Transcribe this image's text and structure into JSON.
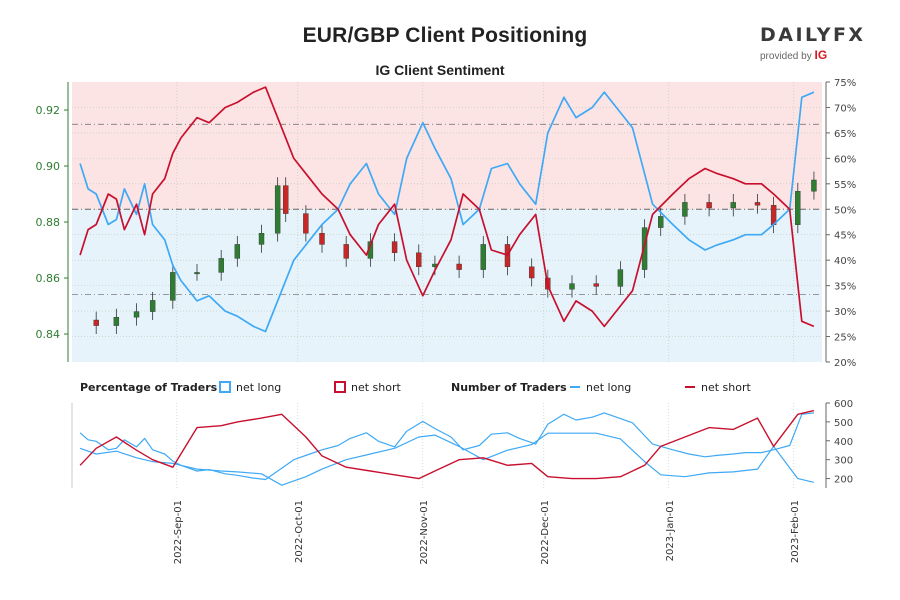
{
  "title": "EUR/GBP Client Positioning",
  "subtitle": "IG Client Sentiment",
  "logo": {
    "word_a": "DAILY",
    "word_b": "FX",
    "provided_by": "provided by",
    "ig": "IG"
  },
  "legend": {
    "pct_heading": "Percentage of Traders",
    "pct_long": "net long",
    "pct_short": "net short",
    "num_heading": "Number of Traders",
    "num_long": "net long",
    "num_short": "net short"
  },
  "colors": {
    "long": "#3fa9f5",
    "short": "#c8102e",
    "long_fill": "#e6f3fb",
    "short_fill": "#fce4e4",
    "candle_up": "#2e7d32",
    "candle_down": "#c62828",
    "price_axis": "#2e7d32"
  },
  "chart_data": [
    {
      "type": "candlestick-with-area",
      "title": "EUR/GBP Client Positioning",
      "subtitle": "IG Client Sentiment",
      "x_axis_type": "date",
      "x_ticks": [
        "2022-Sep-01",
        "2022-Oct-01",
        "2022-Nov-01",
        "2022-Dec-01",
        "2023-Jan-01",
        "2023-Feb-01"
      ],
      "price_axis": {
        "side": "left",
        "ylim": [
          0.83,
          0.93
        ],
        "ticks": [
          "0.84",
          "0.86",
          "0.88",
          "0.90",
          "0.92"
        ]
      },
      "percent_axis": {
        "side": "right",
        "ylim": [
          20,
          75
        ],
        "ticks": [
          "20%",
          "25%",
          "30%",
          "35%",
          "40%",
          "45%",
          "50%",
          "55%",
          "60%",
          "65%",
          "70%",
          "75%"
        ],
        "reference_lines": [
          33.3,
          50,
          66.7
        ]
      },
      "grid": true,
      "series": [
        {
          "name": "net long",
          "unit": "%",
          "dates": [
            "2022-08-08",
            "2022-08-10",
            "2022-08-12",
            "2022-08-15",
            "2022-08-17",
            "2022-08-19",
            "2022-08-22",
            "2022-08-24",
            "2022-08-26",
            "2022-08-29",
            "2022-08-31",
            "2022-09-02",
            "2022-09-06",
            "2022-09-09",
            "2022-09-13",
            "2022-09-16",
            "2022-09-20",
            "2022-09-23",
            "2022-09-27",
            "2022-09-30",
            "2022-10-04",
            "2022-10-07",
            "2022-10-11",
            "2022-10-14",
            "2022-10-18",
            "2022-10-21",
            "2022-10-25",
            "2022-10-28",
            "2022-11-01",
            "2022-11-04",
            "2022-11-08",
            "2022-11-11",
            "2022-11-15",
            "2022-11-18",
            "2022-11-22",
            "2022-11-25",
            "2022-11-29",
            "2022-12-02",
            "2022-12-06",
            "2022-12-09",
            "2022-12-13",
            "2022-12-16",
            "2022-12-20",
            "2022-12-23",
            "2022-12-28",
            "2023-01-02",
            "2023-01-06",
            "2023-01-10",
            "2023-01-13",
            "2023-01-17",
            "2023-01-20",
            "2023-01-24",
            "2023-01-27",
            "2023-01-31",
            "2023-02-03",
            "2023-02-06"
          ],
          "values": [
            59,
            54,
            53,
            47,
            48,
            54,
            49,
            55,
            47,
            44,
            39,
            36,
            32,
            33,
            30,
            29,
            27,
            26,
            34,
            40,
            44,
            47,
            50,
            55,
            59,
            53,
            49,
            60,
            67,
            62,
            56,
            47,
            50,
            58,
            59,
            55,
            51,
            65,
            72,
            68,
            70,
            73,
            69,
            66,
            51,
            47,
            44,
            42,
            43,
            44,
            45,
            45,
            47,
            50,
            72,
            73
          ]
        },
        {
          "name": "net short",
          "unit": "%",
          "dates": [
            "2022-08-08",
            "2022-08-10",
            "2022-08-12",
            "2022-08-15",
            "2022-08-17",
            "2022-08-19",
            "2022-08-22",
            "2022-08-24",
            "2022-08-26",
            "2022-08-29",
            "2022-08-31",
            "2022-09-02",
            "2022-09-06",
            "2022-09-09",
            "2022-09-13",
            "2022-09-16",
            "2022-09-20",
            "2022-09-23",
            "2022-09-27",
            "2022-09-30",
            "2022-10-04",
            "2022-10-07",
            "2022-10-11",
            "2022-10-14",
            "2022-10-18",
            "2022-10-21",
            "2022-10-25",
            "2022-10-28",
            "2022-11-01",
            "2022-11-04",
            "2022-11-08",
            "2022-11-11",
            "2022-11-15",
            "2022-11-18",
            "2022-11-22",
            "2022-11-25",
            "2022-11-29",
            "2022-12-02",
            "2022-12-06",
            "2022-12-09",
            "2022-12-13",
            "2022-12-16",
            "2022-12-20",
            "2022-12-23",
            "2022-12-28",
            "2023-01-02",
            "2023-01-06",
            "2023-01-10",
            "2023-01-13",
            "2023-01-17",
            "2023-01-20",
            "2023-01-24",
            "2023-01-27",
            "2023-01-31",
            "2023-02-03",
            "2023-02-06"
          ],
          "values": [
            41,
            46,
            47,
            53,
            52,
            46,
            51,
            45,
            53,
            56,
            61,
            64,
            68,
            67,
            70,
            71,
            73,
            74,
            66,
            60,
            56,
            53,
            50,
            45,
            41,
            47,
            51,
            40,
            33,
            38,
            44,
            53,
            50,
            42,
            41,
            45,
            49,
            35,
            28,
            32,
            30,
            27,
            31,
            34,
            49,
            53,
            56,
            58,
            57,
            56,
            55,
            55,
            53,
            50,
            28,
            27
          ]
        },
        {
          "name": "EUR/GBP",
          "unit": "price",
          "dates": [
            "2022-08-08",
            "2022-08-12",
            "2022-08-17",
            "2022-08-22",
            "2022-08-26",
            "2022-08-31",
            "2022-09-06",
            "2022-09-12",
            "2022-09-16",
            "2022-09-22",
            "2022-09-26",
            "2022-09-28",
            "2022-10-03",
            "2022-10-07",
            "2022-10-13",
            "2022-10-19",
            "2022-10-25",
            "2022-10-31",
            "2022-11-04",
            "2022-11-10",
            "2022-11-16",
            "2022-11-22",
            "2022-11-28",
            "2022-12-02",
            "2022-12-08",
            "2022-12-14",
            "2022-12-20",
            "2022-12-26",
            "2022-12-30",
            "2023-01-05",
            "2023-01-11",
            "2023-01-17",
            "2023-01-23",
            "2023-01-27",
            "2023-02-02",
            "2023-02-06"
          ],
          "values": [
            0.845,
            0.843,
            0.846,
            0.848,
            0.852,
            0.862,
            0.862,
            0.867,
            0.872,
            0.876,
            0.893,
            0.883,
            0.876,
            0.872,
            0.867,
            0.873,
            0.869,
            0.864,
            0.865,
            0.863,
            0.872,
            0.864,
            0.86,
            0.856,
            0.858,
            0.857,
            0.863,
            0.878,
            0.882,
            0.887,
            0.885,
            0.887,
            0.886,
            0.879,
            0.891,
            0.895
          ]
        }
      ]
    },
    {
      "type": "line",
      "title": "Number of Traders",
      "ylim": [
        150,
        600
      ],
      "y_ticks": [
        "200",
        "300",
        "400",
        "500",
        "600"
      ],
      "x_ticks": [
        "2022-Sep-01",
        "2022-Oct-01",
        "2022-Nov-01",
        "2022-Dec-01",
        "2023-Jan-01",
        "2023-Feb-01"
      ],
      "series": [
        {
          "name": "net long",
          "dates": [
            "2022-08-08",
            "2022-08-12",
            "2022-08-17",
            "2022-08-22",
            "2022-08-26",
            "2022-08-31",
            "2022-09-06",
            "2022-09-12",
            "2022-09-16",
            "2022-09-22",
            "2022-09-27",
            "2022-10-03",
            "2022-10-07",
            "2022-10-13",
            "2022-10-19",
            "2022-10-25",
            "2022-10-31",
            "2022-11-04",
            "2022-11-10",
            "2022-11-16",
            "2022-11-22",
            "2022-11-28",
            "2022-12-02",
            "2022-12-08",
            "2022-12-14",
            "2022-12-20",
            "2022-12-26",
            "2022-12-30",
            "2023-01-05",
            "2023-01-11",
            "2023-01-17",
            "2023-01-23",
            "2023-01-27",
            "2023-02-02",
            "2023-02-06"
          ],
          "values": [
            360,
            330,
            345,
            310,
            290,
            280,
            250,
            240,
            235,
            225,
            165,
            210,
            250,
            300,
            330,
            360,
            420,
            430,
            370,
            300,
            350,
            380,
            440,
            440,
            440,
            410,
            290,
            220,
            210,
            230,
            235,
            250,
            370,
            200,
            180
          ]
        },
        {
          "name": "net short",
          "dates": [
            "2022-08-08",
            "2022-08-12",
            "2022-08-17",
            "2022-08-22",
            "2022-08-26",
            "2022-08-31",
            "2022-09-06",
            "2022-09-12",
            "2022-09-16",
            "2022-09-22",
            "2022-09-27",
            "2022-10-03",
            "2022-10-07",
            "2022-10-13",
            "2022-10-19",
            "2022-10-25",
            "2022-10-31",
            "2022-11-04",
            "2022-11-10",
            "2022-11-16",
            "2022-11-22",
            "2022-11-28",
            "2022-12-02",
            "2022-12-08",
            "2022-12-14",
            "2022-12-20",
            "2022-12-26",
            "2022-12-30",
            "2023-01-05",
            "2023-01-11",
            "2023-01-17",
            "2023-01-23",
            "2023-01-27",
            "2023-02-02",
            "2023-02-06"
          ],
          "values": [
            270,
            360,
            420,
            350,
            300,
            260,
            470,
            480,
            500,
            520,
            540,
            420,
            320,
            260,
            240,
            220,
            200,
            240,
            300,
            310,
            270,
            280,
            210,
            200,
            200,
            210,
            270,
            370,
            420,
            470,
            460,
            520,
            370,
            540,
            560
          ]
        }
      ]
    }
  ]
}
